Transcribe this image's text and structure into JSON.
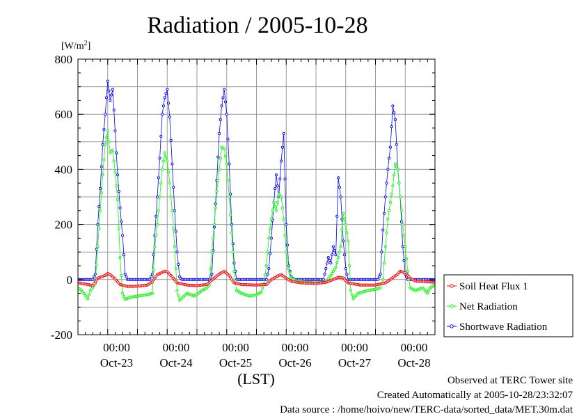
{
  "chart_data": {
    "type": "line",
    "title": "Radiation / 2005-10-28",
    "ylabel": "[W/m²]",
    "ylabel_base": "[W/m",
    "ylabel_sup": "2",
    "ylabel_end": "]",
    "xlabel": "(LST)",
    "ylim": [
      -200,
      800
    ],
    "yticks": [
      -200,
      0,
      200,
      400,
      600,
      800
    ],
    "x_unit": "hours since Oct-22 00:00 LST",
    "xlim": [
      0,
      144
    ],
    "x_time_labels": [
      "00:00",
      "00:00",
      "00:00",
      "00:00",
      "00:00",
      "00:00"
    ],
    "x_date_labels": [
      "Oct-23",
      "Oct-24",
      "Oct-25",
      "Oct-26",
      "Oct-27",
      "Oct-28"
    ],
    "x_label_hours": [
      24,
      48,
      72,
      96,
      120,
      144
    ],
    "grid": true,
    "legend_position": "right",
    "series": [
      {
        "name": "Soil Heat Flux 1",
        "color": "#ff0000",
        "points": [
          [
            0,
            -12
          ],
          [
            4,
            -18
          ],
          [
            6,
            -22
          ],
          [
            8,
            5
          ],
          [
            11,
            15
          ],
          [
            12,
            22
          ],
          [
            13,
            18
          ],
          [
            15,
            2
          ],
          [
            17,
            -18
          ],
          [
            20,
            -25
          ],
          [
            24,
            -24
          ],
          [
            28,
            -20
          ],
          [
            30,
            -8
          ],
          [
            32,
            18
          ],
          [
            35,
            30
          ],
          [
            36,
            28
          ],
          [
            38,
            10
          ],
          [
            40,
            -12
          ],
          [
            44,
            -20
          ],
          [
            48,
            -22
          ],
          [
            52,
            -18
          ],
          [
            54,
            -2
          ],
          [
            57,
            20
          ],
          [
            59,
            30
          ],
          [
            61,
            15
          ],
          [
            63,
            -12
          ],
          [
            66,
            -18
          ],
          [
            72,
            -20
          ],
          [
            76,
            -18
          ],
          [
            78,
            0
          ],
          [
            81,
            15
          ],
          [
            82,
            18
          ],
          [
            84,
            5
          ],
          [
            86,
            -6
          ],
          [
            90,
            -12
          ],
          [
            96,
            -14
          ],
          [
            100,
            -10
          ],
          [
            102,
            -3
          ],
          [
            105,
            8
          ],
          [
            107,
            6
          ],
          [
            109,
            -12
          ],
          [
            114,
            -20
          ],
          [
            120,
            -20
          ],
          [
            124,
            -12
          ],
          [
            126,
            0
          ],
          [
            129,
            20
          ],
          [
            130,
            30
          ],
          [
            132,
            25
          ],
          [
            134,
            5
          ],
          [
            136,
            -5
          ],
          [
            144,
            -10
          ]
        ]
      },
      {
        "name": "Net Radiation",
        "color": "#00ff00",
        "points": [
          [
            0,
            -30
          ],
          [
            2,
            -45
          ],
          [
            4,
            -70
          ],
          [
            5,
            -40
          ],
          [
            7,
            -15
          ],
          [
            8,
            120
          ],
          [
            9,
            250
          ],
          [
            10,
            380
          ],
          [
            11,
            490
          ],
          [
            12,
            540
          ],
          [
            13,
            460
          ],
          [
            14,
            470
          ],
          [
            15,
            390
          ],
          [
            16,
            290
          ],
          [
            17,
            80
          ],
          [
            18,
            -50
          ],
          [
            19,
            -72
          ],
          [
            21,
            -65
          ],
          [
            24,
            -60
          ],
          [
            28,
            -55
          ],
          [
            30,
            -50
          ],
          [
            31,
            120
          ],
          [
            32,
            200
          ],
          [
            33,
            300
          ],
          [
            34,
            400
          ],
          [
            35,
            460
          ],
          [
            36,
            430
          ],
          [
            37,
            350
          ],
          [
            38,
            250
          ],
          [
            39,
            120
          ],
          [
            40,
            -40
          ],
          [
            41,
            -75
          ],
          [
            44,
            -50
          ],
          [
            47,
            -60
          ],
          [
            50,
            -40
          ],
          [
            52,
            -30
          ],
          [
            53,
            -20
          ],
          [
            54,
            100
          ],
          [
            55,
            200
          ],
          [
            56,
            320
          ],
          [
            57,
            400
          ],
          [
            58,
            480
          ],
          [
            59,
            475
          ],
          [
            60,
            420
          ],
          [
            61,
            300
          ],
          [
            62,
            170
          ],
          [
            63,
            30
          ],
          [
            64,
            -40
          ],
          [
            66,
            -50
          ],
          [
            69,
            -60
          ],
          [
            72,
            -55
          ],
          [
            74,
            -45
          ],
          [
            75,
            -15
          ],
          [
            76,
            50
          ],
          [
            77,
            150
          ],
          [
            78,
            220
          ],
          [
            79,
            280
          ],
          [
            80,
            250
          ],
          [
            81,
            310
          ],
          [
            82,
            300
          ],
          [
            83,
            220
          ],
          [
            84,
            100
          ],
          [
            85,
            40
          ],
          [
            86,
            5
          ],
          [
            88,
            -5
          ],
          [
            92,
            -10
          ],
          [
            96,
            -12
          ],
          [
            100,
            -8
          ],
          [
            102,
            15
          ],
          [
            103,
            30
          ],
          [
            104,
            45
          ],
          [
            105,
            80
          ],
          [
            106,
            120
          ],
          [
            107,
            240
          ],
          [
            108,
            200
          ],
          [
            109,
            140
          ],
          [
            110,
            -40
          ],
          [
            111,
            -70
          ],
          [
            113,
            -50
          ],
          [
            117,
            -40
          ],
          [
            120,
            -35
          ],
          [
            122,
            -30
          ],
          [
            123,
            0
          ],
          [
            124,
            120
          ],
          [
            125,
            220
          ],
          [
            126,
            280
          ],
          [
            127,
            340
          ],
          [
            128,
            420
          ],
          [
            129,
            400
          ],
          [
            130,
            300
          ],
          [
            131,
            200
          ],
          [
            132,
            120
          ],
          [
            133,
            30
          ],
          [
            134,
            -30
          ],
          [
            136,
            -40
          ],
          [
            139,
            -30
          ],
          [
            141,
            -50
          ],
          [
            142,
            -30
          ],
          [
            144,
            -20
          ]
        ]
      },
      {
        "name": "Shortwave Radiation",
        "color": "#0000ff",
        "points": [
          [
            0,
            0
          ],
          [
            6,
            0
          ],
          [
            7,
            20
          ],
          [
            8,
            200
          ],
          [
            9,
            330
          ],
          [
            10,
            490
          ],
          [
            11,
            600
          ],
          [
            12,
            720
          ],
          [
            13,
            650
          ],
          [
            14,
            690
          ],
          [
            15,
            540
          ],
          [
            16,
            380
          ],
          [
            17,
            260
          ],
          [
            18,
            160
          ],
          [
            19,
            20
          ],
          [
            20,
            0
          ],
          [
            29,
            0
          ],
          [
            30,
            20
          ],
          [
            31,
            160
          ],
          [
            32,
            300
          ],
          [
            33,
            440
          ],
          [
            34,
            600
          ],
          [
            35,
            660
          ],
          [
            36,
            690
          ],
          [
            37,
            590
          ],
          [
            38,
            420
          ],
          [
            39,
            250
          ],
          [
            40,
            100
          ],
          [
            41,
            10
          ],
          [
            42,
            0
          ],
          [
            53,
            0
          ],
          [
            54,
            20
          ],
          [
            55,
            190
          ],
          [
            56,
            360
          ],
          [
            57,
            530
          ],
          [
            58,
            630
          ],
          [
            59,
            690
          ],
          [
            60,
            600
          ],
          [
            61,
            420
          ],
          [
            62,
            200
          ],
          [
            63,
            60
          ],
          [
            64,
            0
          ],
          [
            76,
            0
          ],
          [
            77,
            40
          ],
          [
            78,
            150
          ],
          [
            79,
            280
          ],
          [
            80,
            380
          ],
          [
            81,
            300
          ],
          [
            82,
            430
          ],
          [
            83,
            530
          ],
          [
            84,
            200
          ],
          [
            85,
            50
          ],
          [
            86,
            10
          ],
          [
            87,
            0
          ],
          [
            99,
            0
          ],
          [
            100,
            40
          ],
          [
            101,
            80
          ],
          [
            102,
            60
          ],
          [
            103,
            120
          ],
          [
            104,
            90
          ],
          [
            105,
            370
          ],
          [
            106,
            300
          ],
          [
            107,
            140
          ],
          [
            108,
            40
          ],
          [
            109,
            0
          ],
          [
            121,
            0
          ],
          [
            122,
            20
          ],
          [
            123,
            180
          ],
          [
            124,
            300
          ],
          [
            125,
            400
          ],
          [
            126,
            480
          ],
          [
            127,
            630
          ],
          [
            128,
            580
          ],
          [
            129,
            400
          ],
          [
            130,
            300
          ],
          [
            131,
            120
          ],
          [
            132,
            20
          ],
          [
            133,
            0
          ],
          [
            144,
            0
          ]
        ]
      }
    ]
  },
  "footer": {
    "line1": "Observed at TERC Tower site",
    "line2": "Created Automatically at 2005-10-28/23:32:07",
    "line3": "Data source : /home/hoivo/new/TERC-data/sorted_data/MET.30m.dat"
  }
}
